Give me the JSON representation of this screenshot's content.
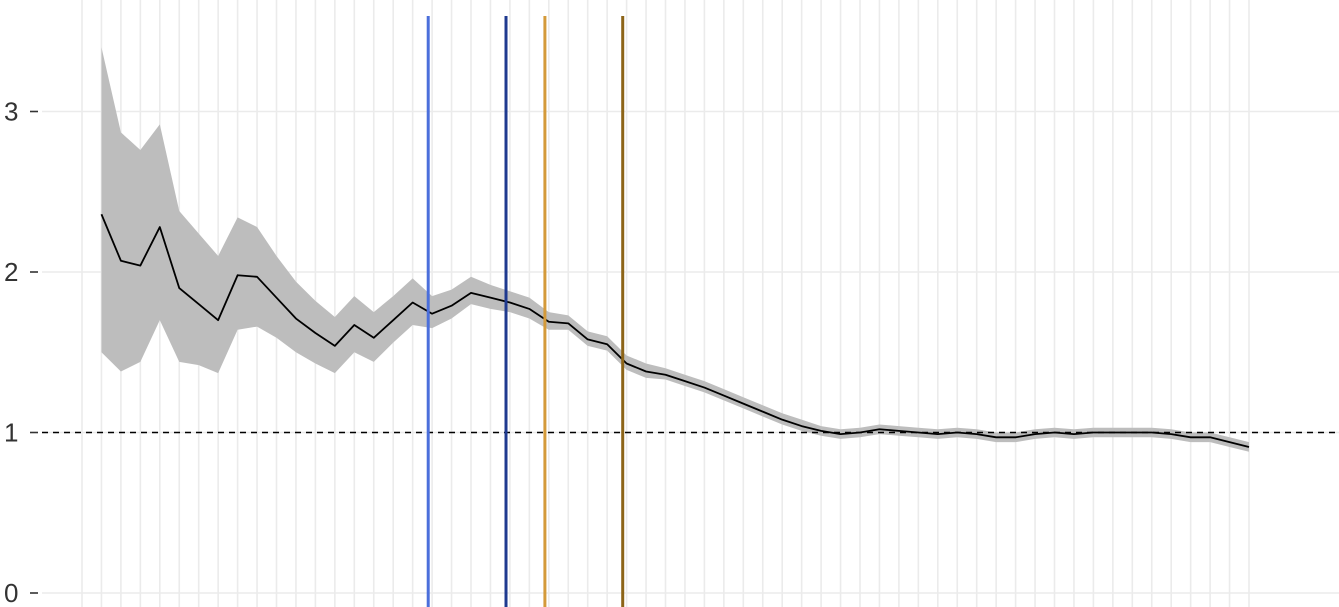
{
  "chart_data": {
    "type": "line",
    "title": "",
    "xlabel": "",
    "ylabel": "",
    "xlim": [
      -1,
      60
    ],
    "ylim": [
      0,
      3.5
    ],
    "y_ticks": [
      {
        "value": 0,
        "label": "0"
      },
      {
        "value": 1,
        "label": "1"
      },
      {
        "value": 2,
        "label": "2"
      },
      {
        "value": 3,
        "label": "3"
      }
    ],
    "grid": true,
    "x_gridlines": [
      0,
      1,
      2,
      3,
      4,
      5,
      6,
      7,
      8,
      9,
      10,
      11,
      12,
      13,
      14,
      15,
      16,
      17,
      18,
      19,
      20,
      21,
      22,
      23,
      24,
      25,
      26,
      27,
      28,
      29,
      30,
      31,
      32,
      33,
      34,
      35,
      36,
      37,
      38,
      39,
      40,
      41,
      42,
      43,
      44,
      45,
      46,
      47,
      48,
      49,
      50,
      51,
      52,
      53,
      54,
      55,
      56,
      57,
      58,
      59,
      60
    ],
    "reference_line": {
      "y": 1,
      "style": "dashed",
      "color": "#000000"
    },
    "vertical_lines": [
      {
        "x": 17.8,
        "color": "#4b6fdb"
      },
      {
        "x": 21.8,
        "color": "#1f3a8f"
      },
      {
        "x": 23.8,
        "color": "#d49a3a"
      },
      {
        "x": 27.8,
        "color": "#8c6418"
      }
    ],
    "series": [
      {
        "line_color": "#000000",
        "band_color": "#bdbdbd",
        "x": [
          1,
          2,
          3,
          4,
          5,
          6,
          7,
          8,
          9,
          10,
          11,
          12,
          13,
          14,
          15,
          16,
          17,
          18,
          19,
          20,
          21,
          22,
          23,
          24,
          25,
          26,
          27,
          28,
          29,
          30,
          31,
          32,
          33,
          34,
          35,
          36,
          37,
          38,
          39,
          40,
          41,
          42,
          43,
          44,
          45,
          46,
          47,
          48,
          49,
          50,
          51,
          52,
          53,
          54,
          55,
          56,
          57,
          58,
          59,
          60
        ],
        "values": [
          2.36,
          2.07,
          2.04,
          2.28,
          1.9,
          1.8,
          1.7,
          1.98,
          1.97,
          1.84,
          1.71,
          1.62,
          1.54,
          1.67,
          1.59,
          1.7,
          1.81,
          1.74,
          1.79,
          1.87,
          1.84,
          1.81,
          1.77,
          1.69,
          1.68,
          1.58,
          1.55,
          1.43,
          1.38,
          1.36,
          1.32,
          1.28,
          1.23,
          1.18,
          1.13,
          1.08,
          1.04,
          1.01,
          0.99,
          1.0,
          1.02,
          1.01,
          1.0,
          0.99,
          1.0,
          0.99,
          0.97,
          0.97,
          0.99,
          1.0,
          0.99,
          1.0,
          1.0,
          1.0,
          1.0,
          0.99,
          0.97,
          0.97,
          0.94,
          0.91
        ],
        "lower": [
          1.5,
          1.38,
          1.44,
          1.7,
          1.44,
          1.42,
          1.37,
          1.64,
          1.66,
          1.59,
          1.5,
          1.43,
          1.37,
          1.5,
          1.44,
          1.56,
          1.67,
          1.65,
          1.71,
          1.8,
          1.77,
          1.75,
          1.71,
          1.64,
          1.64,
          1.54,
          1.51,
          1.39,
          1.34,
          1.33,
          1.29,
          1.25,
          1.2,
          1.15,
          1.1,
          1.05,
          1.01,
          0.98,
          0.96,
          0.97,
          0.99,
          0.98,
          0.97,
          0.96,
          0.97,
          0.96,
          0.94,
          0.94,
          0.96,
          0.97,
          0.96,
          0.97,
          0.97,
          0.97,
          0.97,
          0.96,
          0.94,
          0.94,
          0.91,
          0.88
        ],
        "upper": [
          3.4,
          2.87,
          2.76,
          2.92,
          2.38,
          2.24,
          2.1,
          2.34,
          2.28,
          2.1,
          1.94,
          1.82,
          1.72,
          1.85,
          1.75,
          1.85,
          1.96,
          1.85,
          1.89,
          1.97,
          1.92,
          1.88,
          1.84,
          1.75,
          1.73,
          1.63,
          1.6,
          1.48,
          1.43,
          1.4,
          1.36,
          1.32,
          1.27,
          1.22,
          1.17,
          1.12,
          1.08,
          1.04,
          1.02,
          1.03,
          1.05,
          1.04,
          1.03,
          1.02,
          1.03,
          1.02,
          1.0,
          1.0,
          1.02,
          1.03,
          1.02,
          1.03,
          1.03,
          1.03,
          1.03,
          1.02,
          1.0,
          1.0,
          0.97,
          0.94
        ]
      }
    ]
  }
}
